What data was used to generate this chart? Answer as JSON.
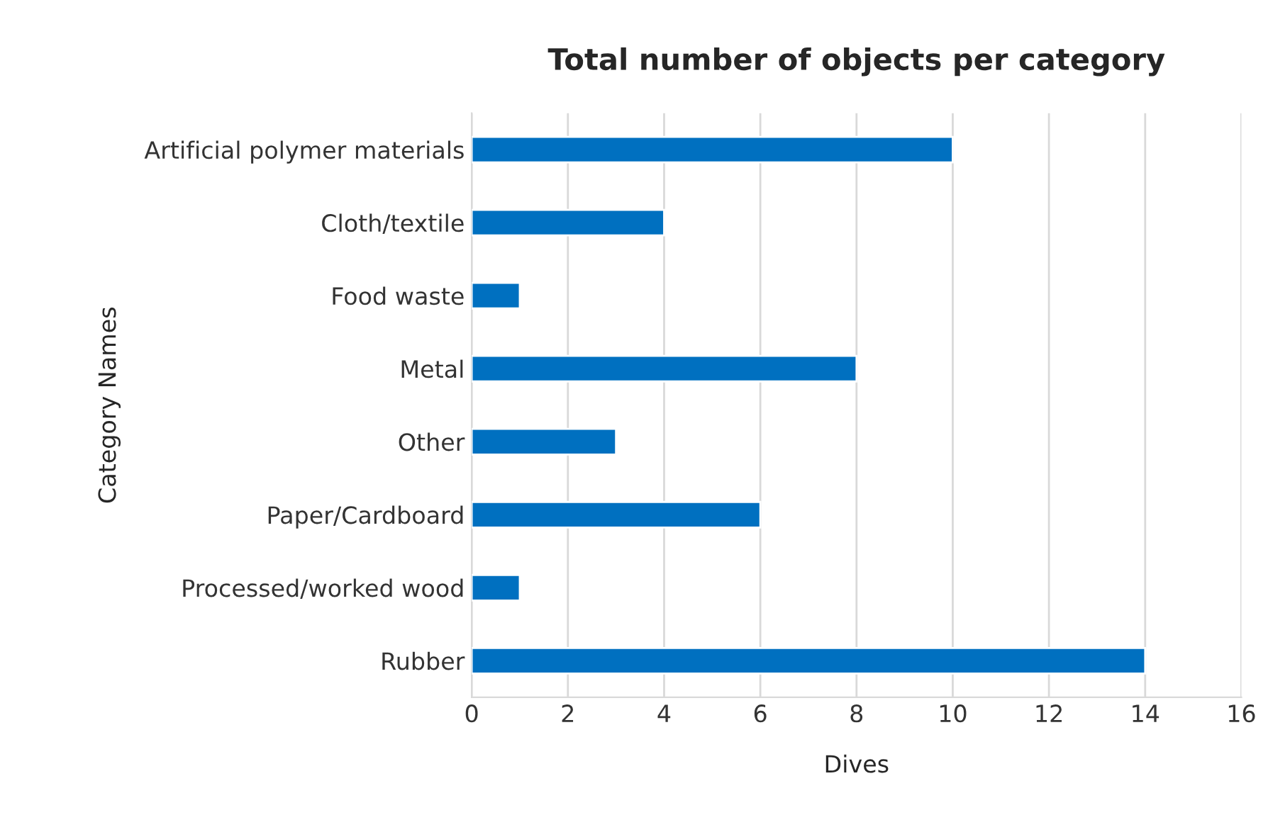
{
  "chart_data": {
    "type": "bar",
    "orientation": "horizontal",
    "title": "Total number of objects per category",
    "xlabel": "Dives",
    "ylabel": "Category Names",
    "categories": [
      "Artificial polymer materials",
      "Cloth/textile",
      "Food waste",
      "Metal",
      "Other",
      "Paper/Cardboard",
      "Processed/worked wood",
      "Rubber"
    ],
    "values": [
      10,
      4,
      1,
      8,
      3,
      6,
      1,
      14
    ],
    "color": "#0070c0",
    "xlim": [
      0,
      16
    ],
    "xticks": [
      0,
      2,
      4,
      6,
      8,
      10,
      12,
      14,
      16
    ],
    "grid": "x"
  }
}
